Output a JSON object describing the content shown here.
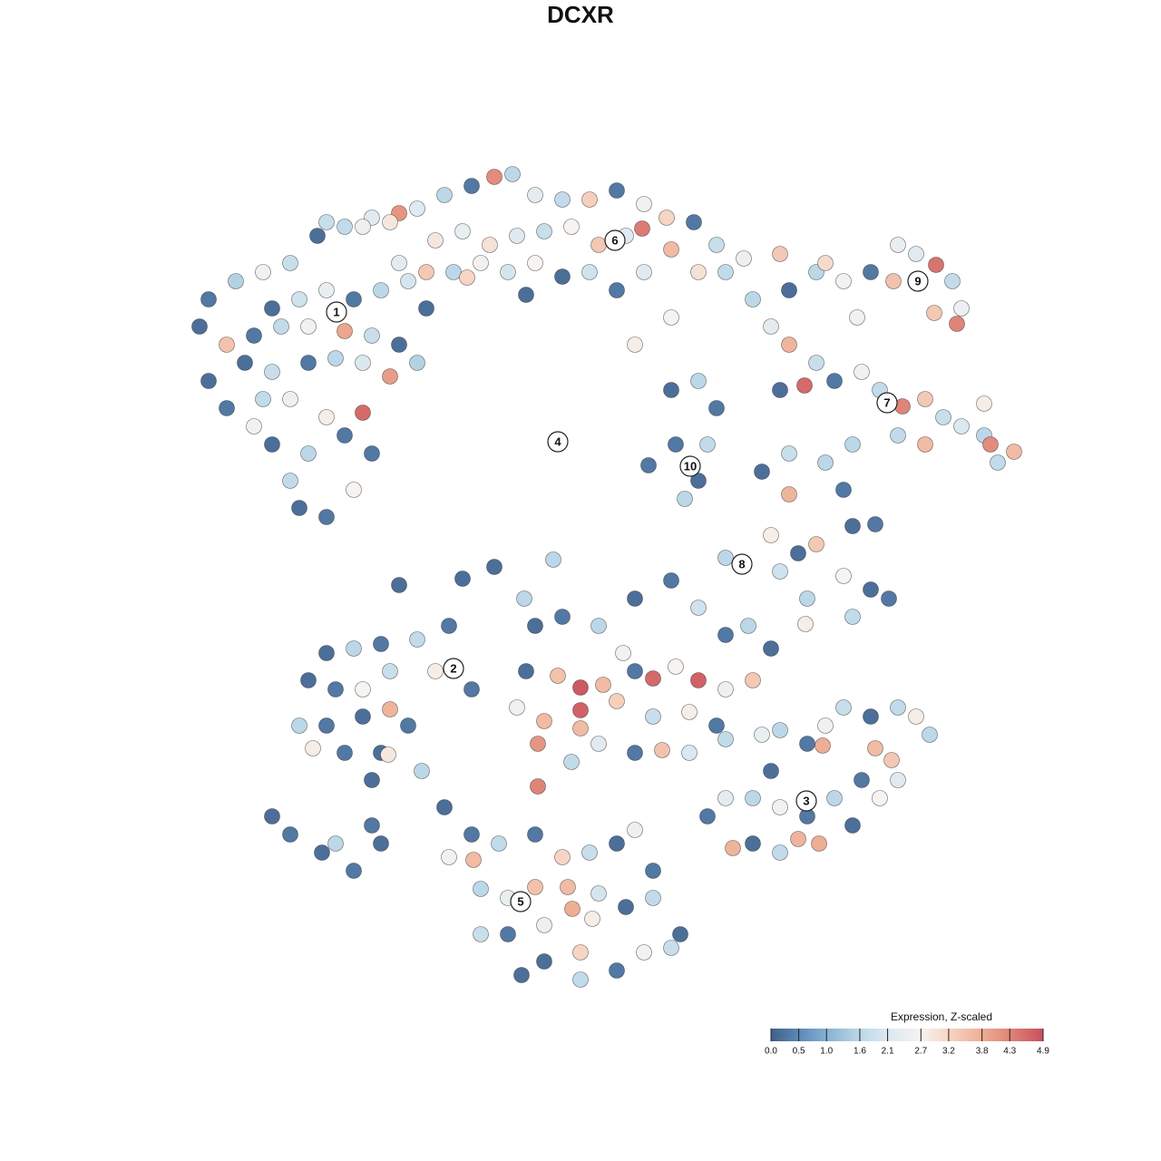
{
  "chart_data": {
    "type": "scatter",
    "title": "DCXR",
    "xlim": [
      0,
      1280
    ],
    "ylim": [
      1280,
      0
    ],
    "x": [
      230,
      260,
      290,
      320,
      350,
      380,
      410,
      440,
      300,
      330,
      360,
      390,
      420,
      450,
      470,
      220,
      250,
      280,
      310,
      340,
      380,
      410,
      440,
      460,
      430,
      400,
      370,
      340,
      300,
      270,
      230,
      250,
      290,
      320,
      360,
      400,
      380,
      340,
      300,
      330,
      360,
      390,
      320,
      410,
      280,
      360,
      400,
      430,
      460,
      490,
      520,
      545,
      565,
      590,
      620,
      650,
      680,
      710,
      735,
      765,
      790,
      820,
      480,
      510,
      540,
      570,
      600,
      630,
      660,
      690,
      708,
      740,
      770,
      800,
      500,
      530,
      560,
      590,
      620,
      650,
      680,
      710,
      470,
      515,
      440,
      580,
      700,
      740,
      830,
      860,
      870,
      900,
      930,
      960,
      985,
      1010,
      1032,
      1050,
      1060,
      1030,
      1055,
      990,
      945,
      910,
      850,
      870,
      900,
      920,
      887,
      860,
      950,
      970,
      995,
      1020,
      1040,
      1060,
      1085,
      1092,
      1118,
      1100,
      1020,
      990,
      940,
      1085,
      740,
      770,
      790,
      745,
      780,
      770,
      755,
      715,
      840,
      870,
      910,
      930,
      870,
      850,
      880,
      900,
      940,
      965,
      930,
      960,
      980,
      890,
      888,
      940,
      800,
      860,
      590,
      620,
      660,
      700,
      740,
      770,
      800,
      825,
      850,
      580,
      615,
      640,
      665,
      700,
      720,
      745,
      770,
      800,
      830,
      570,
      600,
      640,
      680,
      720,
      760,
      790,
      593,
      630,
      660,
      700,
      730,
      760,
      800,
      593,
      640,
      687,
      360,
      390,
      420,
      460,
      495,
      480,
      430,
      400,
      370,
      340,
      330,
      360,
      400,
      430,
      450,
      420,
      428,
      345,
      380,
      410,
      465,
      520,
      840,
      860,
      890,
      910,
      907,
      930,
      960,
      965,
      990,
      1010,
      1025,
      983,
      950,
      970,
      920,
      890,
      880,
      903,
      860,
      830,
      808,
      780,
      800,
      830,
      850,
      860,
      940,
      990,
      490,
      520,
      495,
      522,
      550,
      590,
      620,
      650,
      680,
      700,
      720,
      530,
      560,
      590,
      626,
      660,
      690,
      720,
      750,
      530,
      560,
      600,
      631,
      653,
      640,
      600,
      640,
      680,
      710,
      740,
      575,
      300,
      320,
      355,
      370,
      390,
      420,
      410,
      440,
      510,
      610,
      578,
      545
    ],
    "y": [
      330,
      310,
      300,
      290,
      260,
      250,
      240,
      235,
      340,
      330,
      320,
      330,
      320,
      310,
      340,
      360,
      380,
      370,
      360,
      360,
      365,
      370,
      380,
      400,
      415,
      400,
      395,
      400,
      410,
      400,
      420,
      450,
      440,
      440,
      460,
      455,
      480,
      500,
      490,
      560,
      570,
      540,
      530,
      500,
      470,
      245,
      250,
      245,
      230,
      215,
      205,
      195,
      192,
      215,
      220,
      220,
      210,
      225,
      240,
      245,
      270,
      285,
      265,
      255,
      270,
      260,
      255,
      250,
      270,
      260,
      252,
      275,
      300,
      300,
      300,
      290,
      300,
      290,
      305,
      300,
      320,
      300,
      300,
      306,
      290,
      325,
      380,
      350,
      330,
      280,
      320,
      300,
      310,
      300,
      310,
      280,
      292,
      310,
      340,
      345,
      357,
      270,
      350,
      290,
      360,
      380,
      400,
      420,
      425,
      430,
      410,
      430,
      448,
      440,
      460,
      470,
      480,
      490,
      498,
      510,
      490,
      480,
      490,
      445,
      430,
      420,
      450,
      490,
      490,
      530,
      550,
      513,
      520,
      500,
      510,
      540,
      545,
      590,
      610,
      600,
      580,
      578,
      635,
      650,
      660,
      660,
      688,
      680,
      615,
      630,
      690,
      680,
      690,
      660,
      640,
      670,
      700,
      690,
      715,
      740,
      745,
      758,
      755,
      740,
      748,
      735,
      750,
      760,
      750,
      780,
      795,
      783,
      773,
      790,
      785,
      800,
      820,
      840,
      820,
      830,
      827,
      830,
      815,
      867,
      803,
      720,
      720,
      715,
      710,
      705,
      690,
      740,
      740,
      760,
      760,
      750,
      800,
      800,
      790,
      782,
      800,
      830,
      832,
      825,
      830,
      860,
      850,
      760,
      810,
      805,
      820,
      800,
      822,
      780,
      790,
      825,
      780,
      790,
      810,
      838,
      860,
      880,
      880,
      900,
      925,
      930,
      940,
      930,
      935,
      900,
      880,
      880,
      850,
      890,
      910,
      860,
      890,
      920,
      945,
      948,
      930,
      920,
      945,
      940,
      930,
      915,
      960,
      980,
      990,
      978,
      978,
      985,
      1000,
      990,
      1030,
      1030,
      1030,
      1020,
      1002,
      1013,
      1050,
      1060,
      1080,
      1070,
      1050,
      1045,
      1075,
      900,
      920,
      940,
      930,
      960,
      930,
      910,
      645,
      638,
      617,
      660,
      625
    ],
    "values": [
      0.3,
      1.5,
      2.6,
      1.8,
      0.2,
      1.7,
      2.2,
      4.1,
      0.2,
      1.9,
      2.4,
      0.3,
      1.6,
      2.0,
      0.2,
      0.2,
      3.5,
      0.3,
      1.7,
      2.6,
      3.9,
      1.8,
      0.2,
      1.5,
      4.0,
      2.1,
      1.6,
      0.3,
      1.8,
      0.2,
      0.2,
      0.3,
      1.7,
      2.5,
      2.8,
      4.6,
      0.3,
      1.6,
      0.2,
      0.2,
      0.3,
      2.7,
      1.7,
      0.3,
      2.6,
      1.8,
      2.5,
      2.9,
      2.2,
      1.6,
      0.3,
      4.2,
      1.6,
      2.3,
      1.7,
      3.3,
      0.3,
      2.6,
      3.2,
      0.3,
      1.8,
      2.5,
      2.9,
      2.4,
      3.0,
      2.2,
      1.8,
      2.7,
      3.4,
      2.2,
      4.4,
      3.6,
      3.0,
      1.7,
      1.6,
      2.6,
      2.0,
      2.7,
      0.2,
      1.9,
      0.3,
      2.2,
      3.4,
      3.2,
      2.3,
      0.2,
      2.8,
      2.7,
      1.6,
      3.4,
      0.2,
      1.6,
      2.6,
      0.3,
      3.5,
      2.2,
      4.5,
      1.7,
      2.5,
      3.4,
      4.3,
      2.4,
      2.6,
      3.1,
      2.3,
      3.7,
      1.8,
      0.3,
      4.6,
      0.2,
      2.6,
      1.7,
      4.3,
      3.4,
      1.8,
      2.1,
      1.6,
      4.2,
      3.6,
      1.7,
      3.6,
      1.7,
      1.6,
      2.8,
      0.2,
      1.6,
      0.3,
      0.3,
      1.7,
      0.2,
      1.6,
      0.3,
      0.2,
      1.8,
      1.6,
      0.3,
      3.7,
      2.8,
      0.2,
      3.4,
      0.2,
      0.3,
      2.7,
      0.2,
      0.3,
      1.6,
      2.8,
      1.7,
      1.6,
      1.9,
      0.2,
      0.3,
      1.6,
      0.2,
      0.3,
      1.9,
      0.3,
      1.6,
      0.2,
      0.2,
      3.5,
      4.8,
      3.6,
      0.3,
      4.6,
      2.7,
      4.7,
      2.5,
      3.4,
      2.6,
      3.6,
      4.7,
      3.3,
      1.8,
      2.8,
      0.3,
      4.1,
      1.7,
      2.2,
      0.3,
      3.5,
      2.1,
      1.7,
      4.3,
      3.6,
      2.6,
      0.2,
      1.6,
      0.3,
      1.7,
      0.3,
      2.8,
      1.8,
      2.7,
      0.3,
      0.2,
      1.6,
      0.3,
      0.2,
      3.7,
      0.3,
      0.2,
      2.9,
      2.8,
      0.3,
      0.2,
      1.6,
      0.3,
      2.4,
      1.6,
      0.3,
      2.6,
      3.8,
      1.8,
      0.2,
      3.6,
      1.7,
      2.8,
      1.6,
      3.4,
      0.3,
      2.7,
      1.6,
      0.3,
      3.7,
      3.8,
      1.7,
      0.2,
      3.7,
      0.3,
      2.3,
      1.6,
      0.2,
      2.6,
      0.2,
      2.2,
      0.2,
      0.3,
      2.6,
      3.6,
      1.7,
      0.3,
      3.2,
      1.8,
      0.2,
      2.5,
      0.3,
      1.6,
      2.4,
      3.5,
      3.6,
      2.0,
      0.2,
      1.7,
      0.2,
      1.8,
      0.3,
      2.5,
      3.8,
      2.8,
      3.2,
      0.2,
      1.7,
      0.3,
      2.6,
      1.8,
      0.2,
      0.2,
      0.3,
      0.2,
      1.6,
      0.3,
      0.2,
      0.3,
      0.2,
      0.2,
      1.6,
      1.6,
      0.2
    ],
    "annotations": [
      {
        "label": "1",
        "x": 371,
        "y": 344
      },
      {
        "label": "2",
        "x": 500,
        "y": 737
      },
      {
        "label": "3",
        "x": 889,
        "y": 883
      },
      {
        "label": "4",
        "x": 615,
        "y": 487
      },
      {
        "label": "5",
        "x": 574,
        "y": 994
      },
      {
        "label": "6",
        "x": 678,
        "y": 265
      },
      {
        "label": "7",
        "x": 978,
        "y": 444
      },
      {
        "label": "8",
        "x": 818,
        "y": 622
      },
      {
        "label": "9",
        "x": 1012,
        "y": 310
      },
      {
        "label": "10",
        "x": 761,
        "y": 514
      }
    ],
    "colorbar": {
      "title": "Expression, Z-scaled",
      "clim": [
        0,
        4.9
      ],
      "ticks": [
        {
          "value": 0,
          "label": "0.0"
        },
        0.5,
        {
          "value": 1,
          "label": "1.0"
        },
        1.6,
        2.1,
        2.7,
        3.2,
        3.8,
        4.3,
        4.9
      ],
      "colors": [
        "#415f88",
        "#5d88b6",
        "#86b1d2",
        "#bcd8e8",
        "#dbe8f0",
        "#f6f3f0",
        "#f6d5c4",
        "#eeae94",
        "#e08478",
        "#c9505e"
      ]
    }
  }
}
